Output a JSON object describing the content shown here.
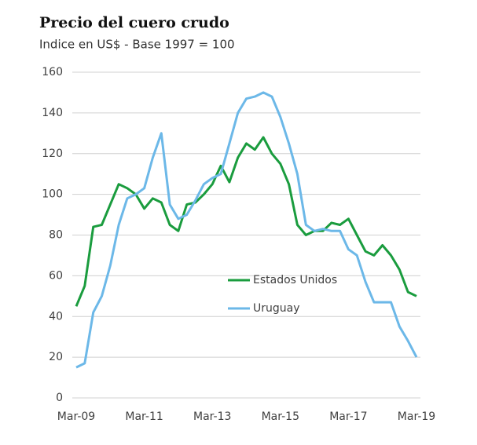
{
  "chart_data": {
    "type": "line",
    "title": "Precio del cuero crudo",
    "subtitle": "Indice en US$ - Base 1997 = 100",
    "categories": [
      "Mar-09",
      null,
      null,
      null,
      null,
      null,
      null,
      null,
      "Mar-11",
      null,
      null,
      null,
      null,
      null,
      null,
      null,
      "Mar-13",
      null,
      null,
      null,
      null,
      null,
      null,
      null,
      "Mar-15",
      null,
      null,
      null,
      null,
      null,
      null,
      null,
      "Mar-17",
      null,
      null,
      null,
      null,
      null,
      null,
      null,
      "Mar-19"
    ],
    "series": [
      {
        "name": "Estados Unidos",
        "color": "#1a9c3e",
        "values": [
          45,
          55,
          84,
          85,
          95,
          105,
          103,
          100,
          93,
          98,
          96,
          85,
          82,
          95,
          96,
          100,
          105,
          114,
          106,
          118,
          125,
          122,
          128,
          120,
          115,
          105,
          85,
          80,
          82,
          82,
          86,
          85,
          88,
          80,
          72,
          70,
          75,
          70,
          63,
          52,
          50
        ]
      },
      {
        "name": "Uruguay",
        "color": "#6cb8e8",
        "values": [
          15,
          17,
          42,
          50,
          65,
          85,
          98,
          100,
          103,
          118,
          130,
          95,
          88,
          90,
          97,
          105,
          108,
          110,
          125,
          140,
          147,
          148,
          150,
          148,
          138,
          125,
          110,
          85,
          82,
          83,
          82,
          82,
          73,
          70,
          57,
          47,
          47,
          47,
          35,
          28,
          20
        ]
      }
    ],
    "ylim": [
      0,
      160
    ],
    "yticks": [
      0,
      20,
      40,
      60,
      80,
      100,
      120,
      140,
      160
    ],
    "grid": true,
    "legend": "center"
  }
}
